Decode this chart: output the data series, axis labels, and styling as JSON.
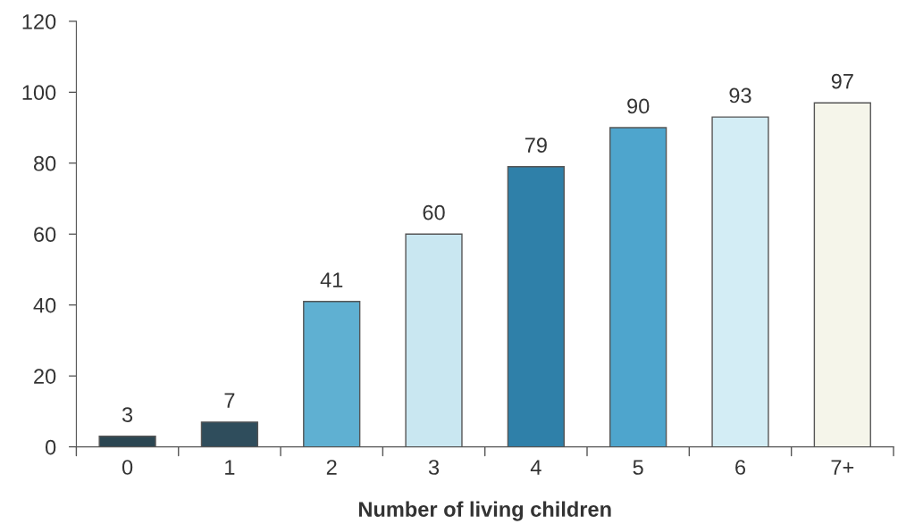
{
  "chart_data": {
    "type": "bar",
    "xlabel": "Number of living children",
    "categories": [
      "0",
      "1",
      "2",
      "3",
      "4",
      "5",
      "6",
      "7+"
    ],
    "values": [
      3,
      7,
      41,
      60,
      79,
      90,
      93,
      97
    ],
    "colors": [
      "#2b4652",
      "#2f4d5c",
      "#5fb0d2",
      "#c9e7f1",
      "#2f80a9",
      "#4ea5cd",
      "#d3edf5",
      "#f5f5ea"
    ],
    "ylim": [
      0,
      120
    ],
    "yticks": [
      0,
      20,
      40,
      60,
      80,
      100,
      120
    ],
    "grid": false,
    "data_labels": true
  }
}
